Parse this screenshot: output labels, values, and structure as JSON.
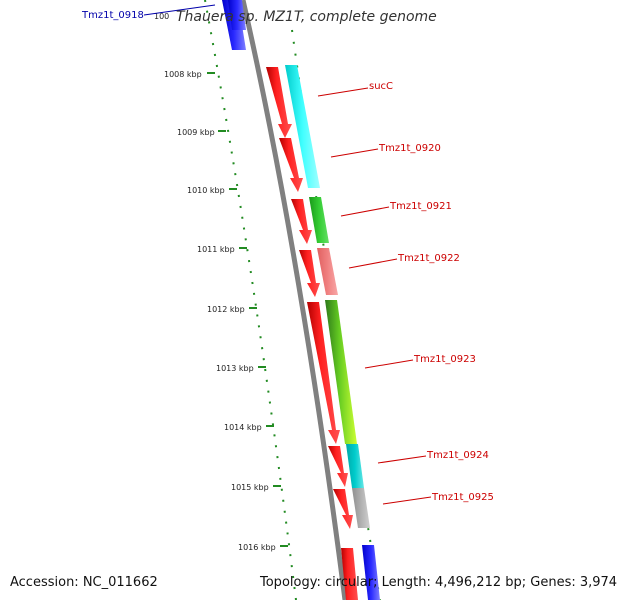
{
  "map": {
    "title": "Thauera sp. MZ1T, complete genome",
    "accession": "Accession: NC_011662",
    "summary": "Topology: circular; Length: 4,496,212 bp; Genes: 3,974",
    "colors": {
      "forward_strand": "#ff0000",
      "backbone": "#808080",
      "tick": "#228b22",
      "label_red": "#cc0000",
      "label_blue": "#0000aa"
    },
    "ticks": [
      "1008 kbp",
      "1009 kbp",
      "1010 kbp",
      "1011 kbp",
      "1012 kbp",
      "1013 kbp",
      "1014 kbp",
      "1015 kbp",
      "1016 kbp"
    ],
    "top_partial_label": "100",
    "genes": [
      {
        "label": "Tmz1t_0918",
        "color": "#0000cc",
        "category_color": "#0000ff"
      },
      {
        "label": "sucC",
        "color": "#cc0000",
        "category_color": "#00ffff"
      },
      {
        "label": "Tmz1t_0920",
        "color": "#cc0000",
        "category_color": "#00ffff"
      },
      {
        "label": "Tmz1t_0921",
        "color": "#cc0000",
        "category_color": "#33cc33"
      },
      {
        "label": "Tmz1t_0922",
        "color": "#cc0000",
        "category_color": "#f08080"
      },
      {
        "label": "Tmz1t_0923",
        "color": "#cc0000",
        "category_color": "#99ff33"
      },
      {
        "label": "Tmz1t_0924",
        "color": "#cc0000",
        "category_color": "#00cccc"
      },
      {
        "label": "Tmz1t_0925",
        "color": "#cc0000",
        "category_color": "#b0b0b0"
      }
    ]
  }
}
